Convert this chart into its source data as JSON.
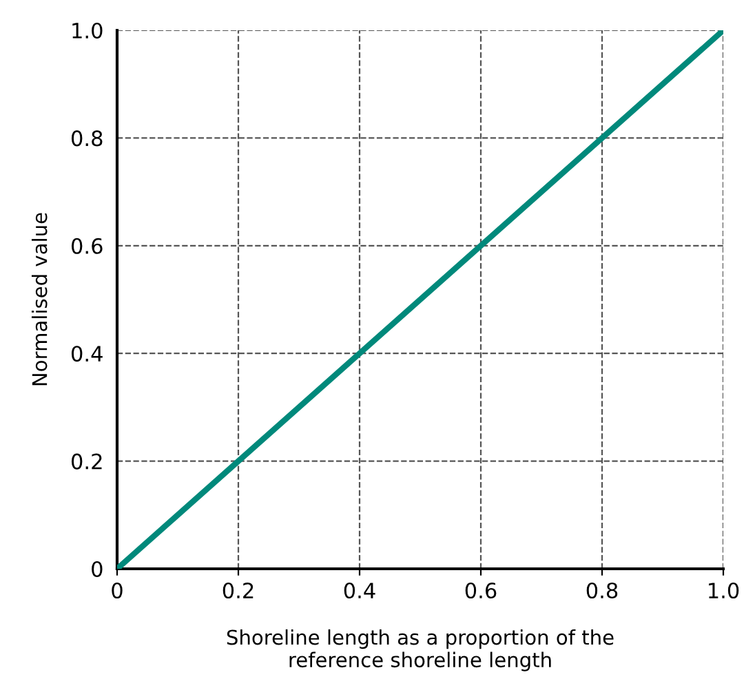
{
  "chart_data": {
    "type": "line",
    "xlabel": "Shoreline length as a proportion of the\nreference shoreline length",
    "ylabel": "Normalised value",
    "x": [
      0,
      1
    ],
    "series": [
      {
        "color": "#00897b",
        "values": [
          0,
          1
        ]
      }
    ],
    "xlim": [
      0,
      1
    ],
    "ylim": [
      0,
      1
    ],
    "xticks": [
      0,
      0.2,
      0.4,
      0.6,
      0.8,
      {
        "value": 1,
        "label": "1.0"
      }
    ],
    "yticks": [
      0,
      0.2,
      0.4,
      0.6,
      0.8,
      {
        "value": 1,
        "label": "1.0"
      }
    ],
    "grid": true,
    "marker": "none",
    "line_style": "solid"
  }
}
